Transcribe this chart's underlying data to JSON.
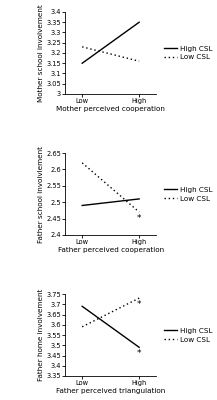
{
  "plots": [
    {
      "xlabel": "Mother perceived cooperation",
      "ylabel": "Mother school involvement",
      "ylim": [
        3.0,
        3.4
      ],
      "yticks": [
        3.0,
        3.05,
        3.1,
        3.15,
        3.2,
        3.25,
        3.3,
        3.35,
        3.4
      ],
      "ytick_labels": [
        "3",
        "3.05",
        "3.1",
        "3.15",
        "3.2",
        "3.25",
        "3.3",
        "3.35",
        "3.4"
      ],
      "high_csl": [
        3.15,
        3.35
      ],
      "low_csl": [
        3.23,
        3.16
      ],
      "high_marker": null,
      "low_marker": null
    },
    {
      "xlabel": "Father perceived cooperation",
      "ylabel": "Father school invoivlement",
      "ylim": [
        2.4,
        2.65
      ],
      "yticks": [
        2.4,
        2.45,
        2.5,
        2.55,
        2.6,
        2.65
      ],
      "ytick_labels": [
        "2.4",
        "2.45",
        "2.5",
        "2.55",
        "2.6",
        "2.65"
      ],
      "high_csl": [
        2.49,
        2.51
      ],
      "low_csl": [
        2.62,
        2.47
      ],
      "high_marker": null,
      "low_marker": "*"
    },
    {
      "xlabel": "Father perceived triangulation",
      "ylabel": "Father home involvement",
      "ylim": [
        3.35,
        3.75
      ],
      "yticks": [
        3.35,
        3.4,
        3.45,
        3.5,
        3.55,
        3.6,
        3.65,
        3.7,
        3.75
      ],
      "ytick_labels": [
        "3.35",
        "3.4",
        "3.45",
        "3.5",
        "3.55",
        "3.6",
        "3.65",
        "3.7",
        "3.75"
      ],
      "high_csl": [
        3.69,
        3.49
      ],
      "low_csl": [
        3.59,
        3.73
      ],
      "high_marker": "*",
      "low_marker": "*"
    }
  ],
  "xtick_labels": [
    "Low",
    "High"
  ],
  "line_color": "black",
  "high_csl_linestyle": "-",
  "low_csl_linestyle": ":",
  "legend_labels": [
    "High CSL",
    "Low CSL"
  ],
  "fontsize_label": 5.2,
  "fontsize_tick": 4.8,
  "fontsize_legend": 5.2,
  "linewidth": 1.0,
  "marker_fontsize": 6.5
}
